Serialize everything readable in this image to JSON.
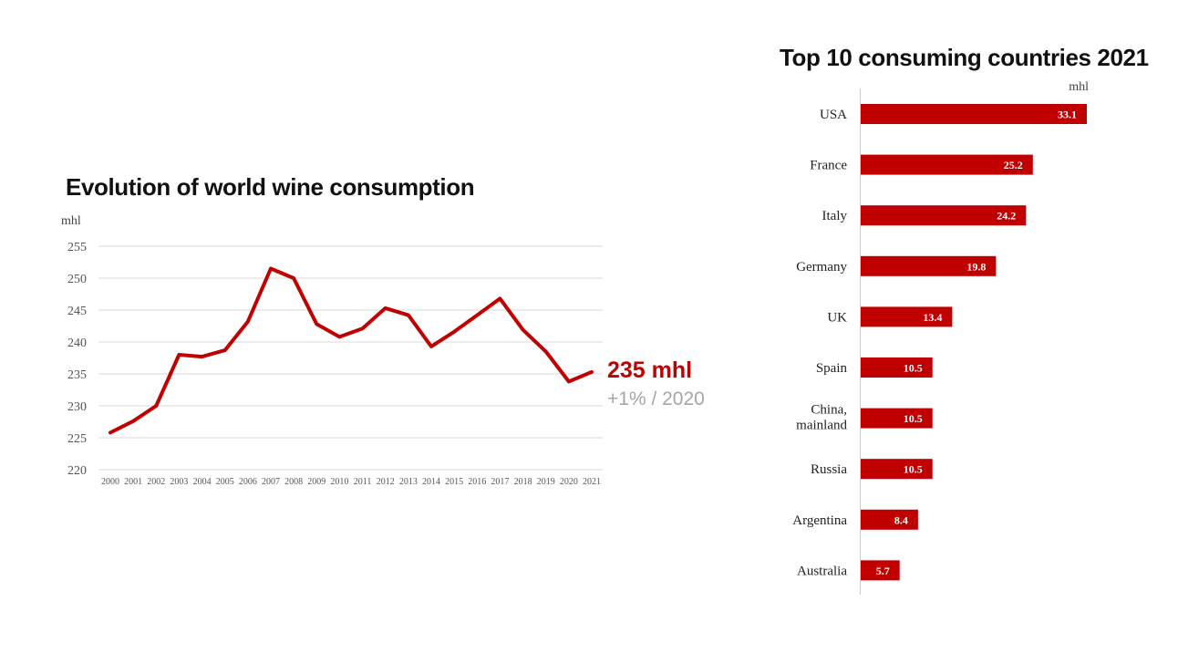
{
  "colors": {
    "accent": "#c00000",
    "grid": "#d9d9d9",
    "muted": "#a6a6a6",
    "axis": "#cccccc"
  },
  "chart_data": [
    {
      "type": "line",
      "title": "Evolution of world wine consumption",
      "ylabel": "mhl",
      "xlabel": "",
      "ylim": [
        220,
        255
      ],
      "yticks": [
        220,
        225,
        230,
        235,
        240,
        245,
        250,
        255
      ],
      "grid": true,
      "categories": [
        "2000",
        "2001",
        "2002",
        "2003",
        "2004",
        "2005",
        "2006",
        "2007",
        "2008",
        "2009",
        "2010",
        "2011",
        "2012",
        "2013",
        "2014",
        "2015",
        "2016",
        "2017",
        "2018",
        "2019",
        "2020",
        "2021"
      ],
      "series": [
        {
          "name": "World wine consumption",
          "values": [
            225.8,
            227.6,
            230.0,
            238.0,
            237.7,
            238.7,
            243.2,
            251.5,
            250.0,
            242.8,
            240.8,
            242.1,
            245.3,
            244.2,
            239.3,
            241.6,
            244.2,
            246.8,
            241.9,
            238.5,
            233.8,
            235.3
          ]
        }
      ],
      "annotation": {
        "value": "235 mhl",
        "change": "+1% / 2020"
      }
    },
    {
      "type": "bar",
      "orientation": "horizontal",
      "title": "Top 10 consuming countries 2021",
      "unit": "mhl",
      "xlim": [
        0,
        33.1
      ],
      "categories": [
        "USA",
        "France",
        "Italy",
        "Germany",
        "UK",
        "Spain",
        "China,\nmainland",
        "Russia",
        "Argentina",
        "Australia"
      ],
      "values": [
        33.1,
        25.2,
        24.2,
        19.8,
        13.4,
        10.5,
        10.5,
        10.5,
        8.4,
        5.7
      ],
      "value_labels": [
        "33.1",
        "25.2",
        "24.2",
        "19.8",
        "13.4",
        "10.5",
        "10.5",
        "10.5",
        "8.4",
        "5.7"
      ]
    }
  ]
}
